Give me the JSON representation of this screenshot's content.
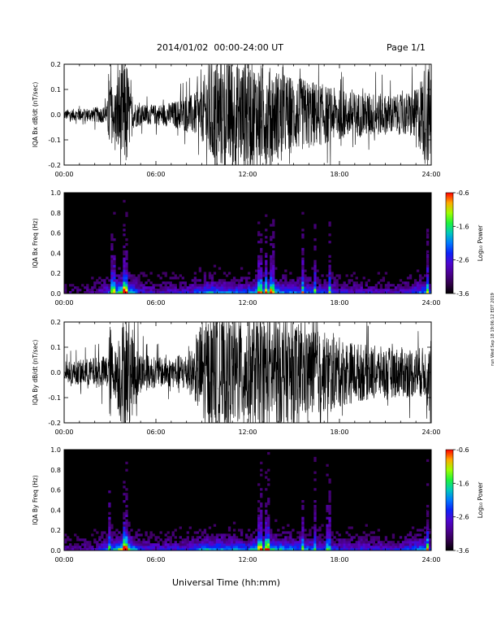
{
  "header": {
    "title": "2014/01/02  00:00-24:00 UT",
    "page": "Page 1/1"
  },
  "stamp": "run Wed Sep 18 19:06:12 EDT 2019",
  "chart_data": [
    {
      "type": "line",
      "ylabel": "IQA Bx dB/dt (nT/sec)",
      "xlim": [
        0,
        24
      ],
      "ylim": [
        -0.2,
        0.2
      ],
      "x_ticks": [
        "00:00",
        "06:00",
        "12:00",
        "18:00",
        "24:00"
      ],
      "y_ticks": [
        "-0.2",
        "-0.1",
        "0.0",
        "0.1",
        "0.2"
      ],
      "envelope": {
        "x": [
          0,
          1,
          2,
          2.8,
          3.0,
          3.2,
          3.6,
          3.9,
          4.1,
          4.4,
          5,
          6,
          7,
          8,
          9,
          9.3,
          9.6,
          10,
          11,
          12,
          13,
          14,
          15,
          16,
          17,
          18,
          19,
          20,
          21,
          22,
          23,
          23.7,
          24
        ],
        "amp": [
          0.02,
          0.025,
          0.03,
          0.035,
          0.2,
          0.06,
          0.2,
          0.22,
          0.22,
          0.06,
          0.04,
          0.04,
          0.05,
          0.07,
          0.1,
          0.2,
          0.22,
          0.22,
          0.22,
          0.22,
          0.2,
          0.18,
          0.15,
          0.14,
          0.12,
          0.1,
          0.09,
          0.09,
          0.08,
          0.08,
          0.1,
          0.22,
          0.2
        ]
      }
    },
    {
      "type": "heatmap",
      "ylabel": "IQA Bx Freq (Hz)",
      "xlim": [
        0,
        24
      ],
      "ylim": [
        0,
        1.0
      ],
      "x_ticks": [
        "00:00",
        "06:00",
        "12:00",
        "18:00",
        "24:00"
      ],
      "y_ticks": [
        "0.0",
        "0.2",
        "0.4",
        "0.6",
        "0.8",
        "1.0"
      ],
      "colorbar": {
        "label": "Log₁₀ Power",
        "ticks": [
          "-0.6",
          "-1.6",
          "-2.6",
          "-3.6"
        ],
        "range": [
          -3.6,
          -0.6
        ]
      },
      "activity": {
        "x": [
          0,
          2,
          3.2,
          3.9,
          4.1,
          5,
          6,
          8,
          9.5,
          10.5,
          12,
          13,
          13.5,
          14,
          15,
          16,
          17,
          18,
          20,
          22,
          23.8,
          24
        ],
        "level": [
          0.15,
          0.2,
          0.55,
          0.95,
          0.8,
          0.35,
          0.3,
          0.35,
          0.6,
          0.55,
          0.5,
          0.65,
          0.7,
          0.6,
          0.5,
          0.55,
          0.4,
          0.35,
          0.3,
          0.3,
          0.6,
          0.3
        ]
      },
      "streaks": [
        3.2,
        3.9,
        4.0,
        12.8,
        13.2,
        13.6,
        15.6,
        16.4,
        17.4,
        23.8
      ]
    },
    {
      "type": "line",
      "ylabel": "IQA By dB/dt (nT/sec)",
      "xlim": [
        0,
        24
      ],
      "ylim": [
        -0.2,
        0.2
      ],
      "x_ticks": [
        "00:00",
        "06:00",
        "12:00",
        "18:00",
        "24:00"
      ],
      "y_ticks": [
        "-0.2",
        "-0.1",
        "0.0",
        "0.1",
        "0.2"
      ],
      "envelope": {
        "x": [
          0,
          1,
          2,
          2.8,
          3.0,
          3.3,
          3.7,
          4.0,
          4.3,
          5,
          6,
          7,
          8,
          8.5,
          9,
          9.5,
          10,
          11,
          12,
          13,
          14,
          15,
          16,
          17,
          18,
          19,
          20,
          21,
          22,
          23,
          24
        ],
        "amp": [
          0.04,
          0.05,
          0.06,
          0.07,
          0.2,
          0.08,
          0.22,
          0.22,
          0.2,
          0.08,
          0.06,
          0.06,
          0.08,
          0.1,
          0.22,
          0.22,
          0.22,
          0.22,
          0.22,
          0.22,
          0.22,
          0.2,
          0.18,
          0.16,
          0.14,
          0.12,
          0.11,
          0.1,
          0.1,
          0.1,
          0.1
        ]
      }
    },
    {
      "type": "heatmap",
      "ylabel": "IQA By Freq (Hz)",
      "xlim": [
        0,
        24
      ],
      "ylim": [
        0,
        1.0
      ],
      "x_ticks": [
        "00:00",
        "06:00",
        "12:00",
        "18:00",
        "24:00"
      ],
      "y_ticks": [
        "0.0",
        "0.2",
        "0.4",
        "0.6",
        "0.8",
        "1.0"
      ],
      "colorbar": {
        "label": "Log₁₀ Power",
        "ticks": [
          "-0.6",
          "-1.6",
          "-2.6",
          "-3.6"
        ],
        "range": [
          -3.6,
          -0.6
        ]
      },
      "activity": {
        "x": [
          0,
          2,
          3.2,
          3.9,
          4.1,
          5,
          6,
          8,
          9.5,
          10.5,
          12,
          13,
          13.5,
          14,
          15,
          16,
          17,
          18,
          20,
          22,
          23.8,
          24
        ],
        "level": [
          0.2,
          0.25,
          0.6,
          0.95,
          0.85,
          0.4,
          0.35,
          0.4,
          0.65,
          0.6,
          0.55,
          0.7,
          0.75,
          0.65,
          0.55,
          0.55,
          0.45,
          0.4,
          0.35,
          0.35,
          0.65,
          0.35
        ]
      },
      "streaks": [
        3.0,
        3.9,
        4.0,
        12.8,
        13.3,
        15.6,
        16.4,
        17.3,
        23.8
      ]
    }
  ],
  "xlabel": "Universal Time (hh:mm)"
}
